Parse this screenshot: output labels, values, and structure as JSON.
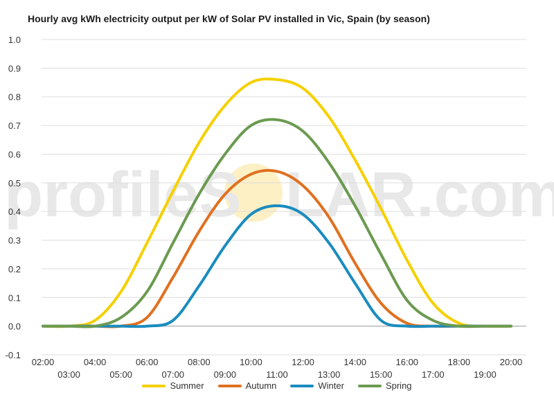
{
  "watermark": {
    "text_left": "profileS",
    "text_right": "LAR.com"
  },
  "chart_data": {
    "type": "line",
    "title": "Hourly avg kWh electricity output per kW of Solar PV installed in Vic, Spain (by season)",
    "xlabel": "",
    "ylabel": "",
    "ylim": [
      -0.1,
      1.0
    ],
    "yticks": [
      "1.0",
      "0.9",
      "0.8",
      "0.7",
      "0.6",
      "0.5",
      "0.4",
      "0.3",
      "0.2",
      "0.1",
      "0.0",
      "-0.1"
    ],
    "ytick_values": [
      1.0,
      0.9,
      0.8,
      0.7,
      0.6,
      0.5,
      0.4,
      0.3,
      0.2,
      0.1,
      0.0,
      -0.1
    ],
    "xticks": [
      "02:00",
      "03:00",
      "04:00",
      "05:00",
      "06:00",
      "07:00",
      "08:00",
      "09:00",
      "10:00",
      "11:00",
      "12:00",
      "13:00",
      "14:00",
      "15:00",
      "16:00",
      "17:00",
      "18:00",
      "19:00",
      "20:00"
    ],
    "x": [
      "02:00",
      "03:00",
      "04:00",
      "05:00",
      "06:00",
      "07:00",
      "08:00",
      "09:00",
      "10:00",
      "11:00",
      "12:00",
      "13:00",
      "14:00",
      "15:00",
      "16:00",
      "17:00",
      "18:00",
      "19:00",
      "20:00"
    ],
    "grid": true,
    "legend_position": "bottom",
    "series": [
      {
        "name": "Summer",
        "color": "#f5d000",
        "values": [
          0.0,
          0.0,
          0.02,
          0.12,
          0.29,
          0.47,
          0.64,
          0.77,
          0.85,
          0.86,
          0.83,
          0.73,
          0.58,
          0.41,
          0.23,
          0.08,
          0.01,
          0.0,
          0.0
        ]
      },
      {
        "name": "Autumn",
        "color": "#e07020",
        "values": [
          0.0,
          0.0,
          0.0,
          0.0,
          0.03,
          0.17,
          0.33,
          0.46,
          0.53,
          0.54,
          0.49,
          0.38,
          0.22,
          0.08,
          0.01,
          0.0,
          0.0,
          0.0,
          0.0
        ]
      },
      {
        "name": "Winter",
        "color": "#1a8cbf",
        "values": [
          0.0,
          0.0,
          0.0,
          0.0,
          0.0,
          0.02,
          0.14,
          0.28,
          0.39,
          0.42,
          0.39,
          0.29,
          0.15,
          0.02,
          0.0,
          0.0,
          0.0,
          0.0,
          0.0
        ]
      },
      {
        "name": "Spring",
        "color": "#6b9a50",
        "values": [
          0.0,
          0.0,
          0.0,
          0.03,
          0.12,
          0.29,
          0.46,
          0.6,
          0.7,
          0.72,
          0.68,
          0.57,
          0.42,
          0.25,
          0.09,
          0.02,
          0.0,
          0.0,
          0.0
        ]
      }
    ]
  }
}
